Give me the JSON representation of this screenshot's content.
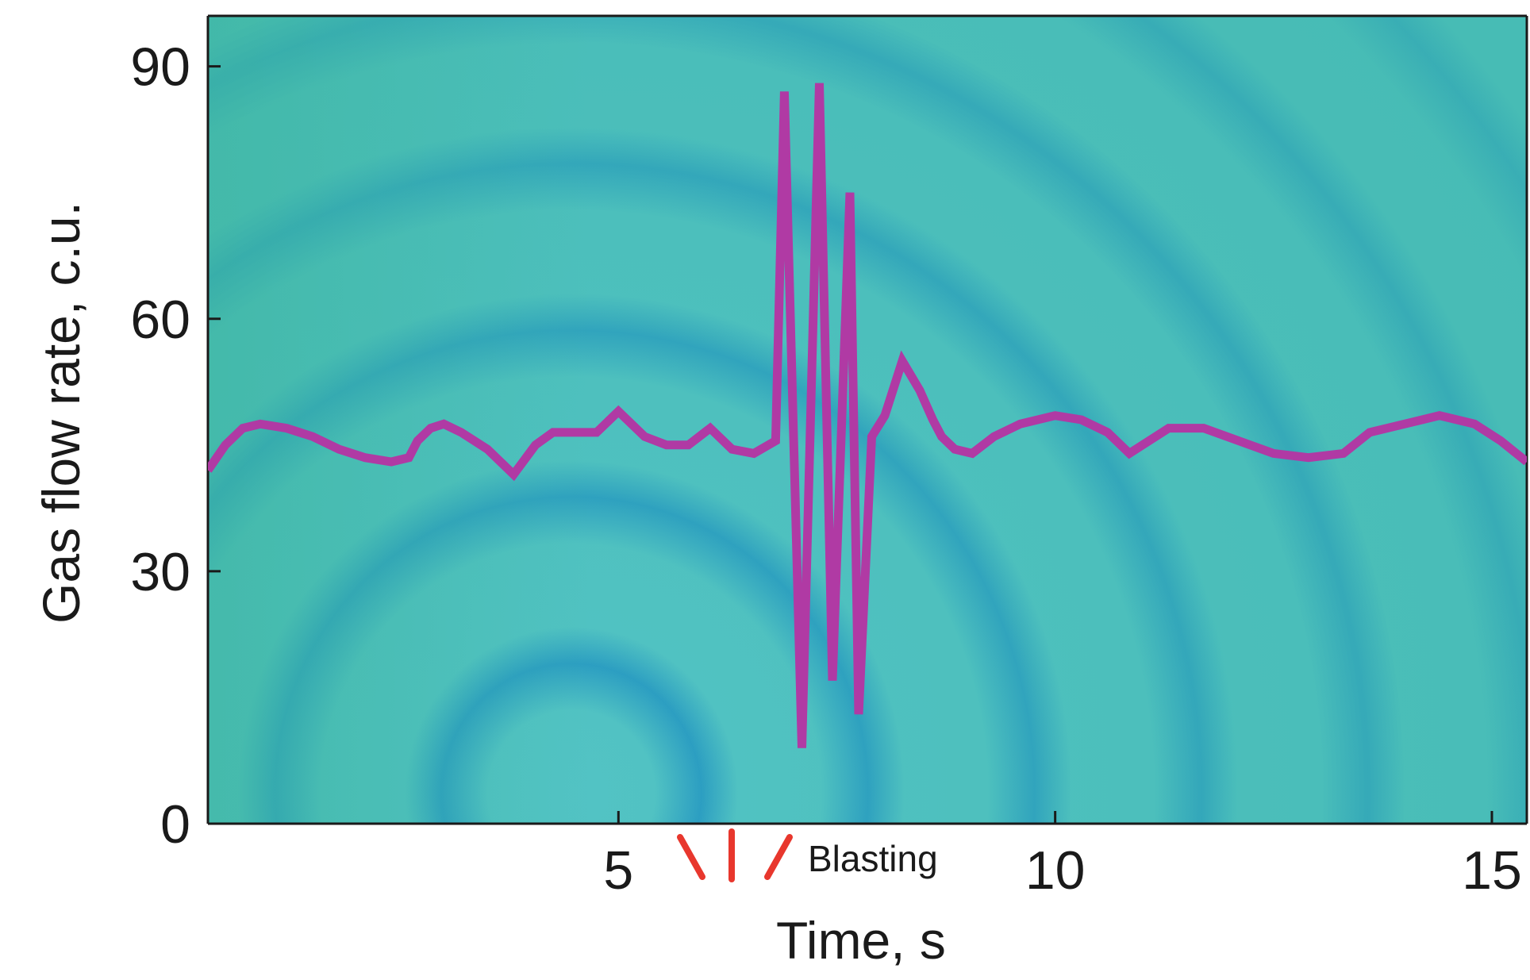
{
  "chart_data": {
    "type": "line",
    "title": "",
    "xlabel": "Time, s",
    "ylabel": "Gas flow rate, c.u.",
    "xlim": [
      0.3,
      15.4
    ],
    "ylim": [
      0,
      96
    ],
    "xticks": [
      5,
      10,
      15
    ],
    "yticks": [
      0,
      30,
      60,
      90
    ],
    "grid": false,
    "legend": "none",
    "colors": {
      "line": "#b03aa4",
      "background_light": "#52c3c4",
      "background_mid": "#41b8ad",
      "ring_dark": "#1d8fc3",
      "ring_green": "#34a888",
      "annotation": "#e8372d",
      "axis": "#1a1a1a"
    },
    "series": [
      {
        "name": "",
        "x": [
          0.3,
          0.5,
          0.7,
          0.9,
          1.2,
          1.5,
          1.8,
          2.1,
          2.4,
          2.6,
          2.7,
          2.85,
          3.0,
          3.2,
          3.5,
          3.8,
          4.05,
          4.25,
          4.5,
          4.75,
          5.0,
          5.3,
          5.55,
          5.8,
          6.05,
          6.3,
          6.55,
          6.8,
          6.9,
          7.1,
          7.3,
          7.45,
          7.65,
          7.75,
          7.9,
          8.05,
          8.25,
          8.45,
          8.6,
          8.7,
          8.85,
          9.05,
          9.3,
          9.6,
          10.0,
          10.3,
          10.6,
          10.85,
          11.3,
          11.7,
          12.1,
          12.5,
          12.9,
          13.3,
          13.6,
          14.0,
          14.4,
          14.8,
          15.1,
          15.4
        ],
        "values": [
          42,
          45,
          47,
          47.5,
          47,
          46,
          44.5,
          43.5,
          43,
          43.5,
          45.5,
          47,
          47.5,
          46.5,
          44.5,
          41.5,
          45,
          46.5,
          46.5,
          46.5,
          49,
          46,
          45,
          45,
          47,
          44.5,
          44,
          45.5,
          87,
          9,
          88,
          17,
          75,
          13,
          46,
          48.5,
          55,
          51.5,
          48,
          46,
          44.5,
          44,
          46,
          47.5,
          48.5,
          48,
          46.5,
          44,
          47,
          47,
          45.5,
          44,
          43.5,
          44,
          46.5,
          47.5,
          48.5,
          47.5,
          45.5,
          43
        ]
      }
    ],
    "annotations": [
      {
        "text": "Blasting",
        "x": 6.3
      }
    ]
  }
}
